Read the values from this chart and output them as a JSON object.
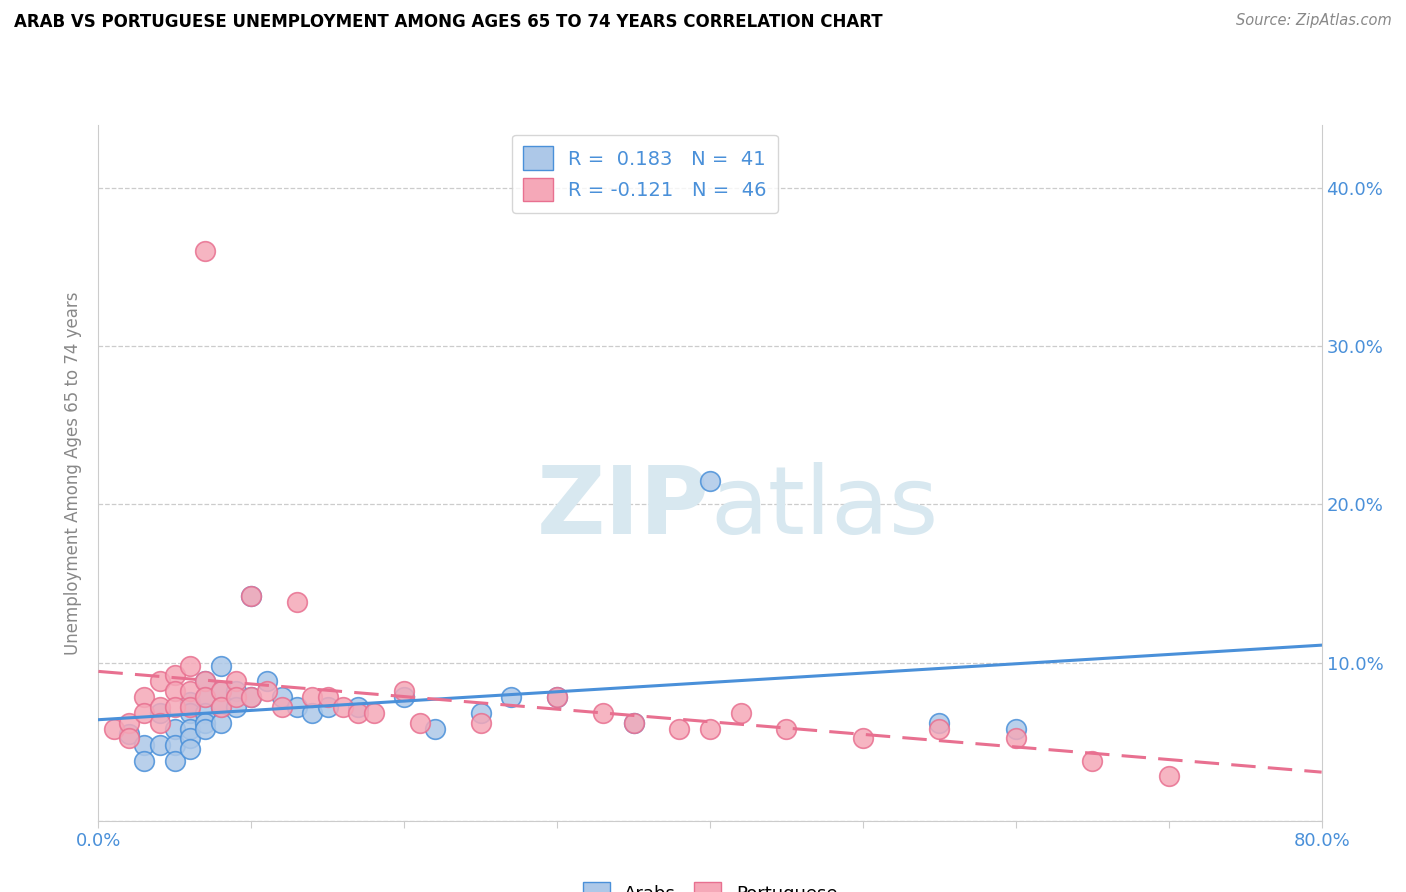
{
  "title": "ARAB VS PORTUGUESE UNEMPLOYMENT AMONG AGES 65 TO 74 YEARS CORRELATION CHART",
  "source": "Source: ZipAtlas.com",
  "ylabel": "Unemployment Among Ages 65 to 74 years",
  "xlim": [
    0.0,
    0.8
  ],
  "ylim": [
    0.0,
    0.44
  ],
  "xticks": [
    0.0,
    0.1,
    0.2,
    0.3,
    0.4,
    0.5,
    0.6,
    0.7,
    0.8
  ],
  "xticklabels": [
    "0.0%",
    "",
    "",
    "",
    "",
    "",
    "",
    "",
    "80.0%"
  ],
  "yticks": [
    0.0,
    0.1,
    0.2,
    0.3,
    0.4
  ],
  "yticklabels_right": [
    "",
    "10.0%",
    "20.0%",
    "30.0%",
    "40.0%"
  ],
  "arab_r": 0.183,
  "arab_n": 41,
  "port_r": -0.121,
  "port_n": 46,
  "arab_color": "#adc8e8",
  "port_color": "#f5a8b8",
  "arab_line_color": "#4a90d9",
  "port_line_color": "#e87090",
  "legend_text_color": "#4a90d9",
  "watermark_zip": "ZIP",
  "watermark_atlas": "atlas",
  "tick_color": "#4a90d9",
  "grid_color": "#cccccc",
  "arab_points": [
    [
      0.02,
      0.055
    ],
    [
      0.03,
      0.048
    ],
    [
      0.03,
      0.038
    ],
    [
      0.04,
      0.068
    ],
    [
      0.04,
      0.048
    ],
    [
      0.05,
      0.058
    ],
    [
      0.05,
      0.048
    ],
    [
      0.05,
      0.038
    ],
    [
      0.06,
      0.075
    ],
    [
      0.06,
      0.068
    ],
    [
      0.06,
      0.058
    ],
    [
      0.06,
      0.052
    ],
    [
      0.06,
      0.045
    ],
    [
      0.07,
      0.088
    ],
    [
      0.07,
      0.078
    ],
    [
      0.07,
      0.068
    ],
    [
      0.07,
      0.062
    ],
    [
      0.07,
      0.058
    ],
    [
      0.08,
      0.098
    ],
    [
      0.08,
      0.082
    ],
    [
      0.08,
      0.072
    ],
    [
      0.08,
      0.062
    ],
    [
      0.09,
      0.082
    ],
    [
      0.09,
      0.072
    ],
    [
      0.1,
      0.142
    ],
    [
      0.1,
      0.078
    ],
    [
      0.11,
      0.088
    ],
    [
      0.12,
      0.078
    ],
    [
      0.13,
      0.072
    ],
    [
      0.14,
      0.068
    ],
    [
      0.15,
      0.072
    ],
    [
      0.17,
      0.072
    ],
    [
      0.2,
      0.078
    ],
    [
      0.22,
      0.058
    ],
    [
      0.25,
      0.068
    ],
    [
      0.27,
      0.078
    ],
    [
      0.3,
      0.078
    ],
    [
      0.35,
      0.062
    ],
    [
      0.4,
      0.215
    ],
    [
      0.55,
      0.062
    ],
    [
      0.6,
      0.058
    ]
  ],
  "port_points": [
    [
      0.01,
      0.058
    ],
    [
      0.02,
      0.062
    ],
    [
      0.02,
      0.052
    ],
    [
      0.03,
      0.078
    ],
    [
      0.03,
      0.068
    ],
    [
      0.04,
      0.088
    ],
    [
      0.04,
      0.072
    ],
    [
      0.04,
      0.062
    ],
    [
      0.05,
      0.092
    ],
    [
      0.05,
      0.082
    ],
    [
      0.05,
      0.072
    ],
    [
      0.06,
      0.098
    ],
    [
      0.06,
      0.082
    ],
    [
      0.06,
      0.072
    ],
    [
      0.07,
      0.088
    ],
    [
      0.07,
      0.078
    ],
    [
      0.07,
      0.36
    ],
    [
      0.08,
      0.082
    ],
    [
      0.08,
      0.072
    ],
    [
      0.09,
      0.088
    ],
    [
      0.09,
      0.078
    ],
    [
      0.1,
      0.142
    ],
    [
      0.1,
      0.078
    ],
    [
      0.11,
      0.082
    ],
    [
      0.12,
      0.072
    ],
    [
      0.13,
      0.138
    ],
    [
      0.14,
      0.078
    ],
    [
      0.15,
      0.078
    ],
    [
      0.16,
      0.072
    ],
    [
      0.17,
      0.068
    ],
    [
      0.18,
      0.068
    ],
    [
      0.2,
      0.082
    ],
    [
      0.21,
      0.062
    ],
    [
      0.25,
      0.062
    ],
    [
      0.3,
      0.078
    ],
    [
      0.33,
      0.068
    ],
    [
      0.35,
      0.062
    ],
    [
      0.38,
      0.058
    ],
    [
      0.4,
      0.058
    ],
    [
      0.42,
      0.068
    ],
    [
      0.45,
      0.058
    ],
    [
      0.5,
      0.052
    ],
    [
      0.55,
      0.058
    ],
    [
      0.6,
      0.052
    ],
    [
      0.65,
      0.038
    ],
    [
      0.7,
      0.028
    ]
  ]
}
